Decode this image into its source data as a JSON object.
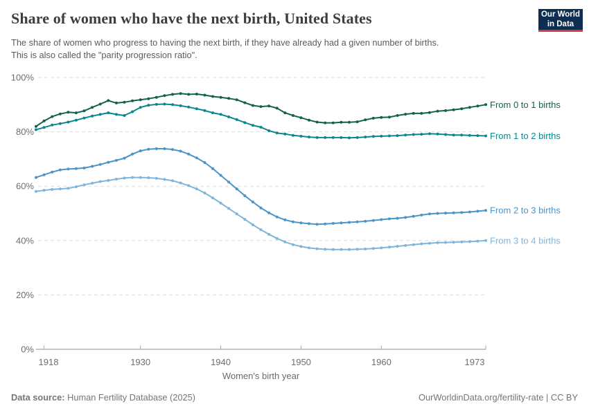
{
  "header": {
    "title": "Share of women who have the next birth, United States",
    "subtitle_line1": "The share of women who progress to having the next birth, if they have already had a given number of births.",
    "subtitle_line2": "This is also called the \"parity progression ratio\".",
    "logo": {
      "line1": "Our World",
      "line2": "in Data",
      "bg_color": "#0d2e51",
      "accent_color": "#d23a3e"
    }
  },
  "footer": {
    "source_label": "Data source:",
    "source_value": " Human Fertility Database (2025)",
    "link": "OurWorldinData.org/fertility-rate | CC BY"
  },
  "chart_data": {
    "type": "line",
    "title": "Share of women who have the next birth, United States",
    "xlabel": "Women's birth year",
    "ylabel": "",
    "x_range": [
      1917,
      1973
    ],
    "x_step": 1,
    "ylim": [
      0,
      100
    ],
    "yticks": [
      0,
      20,
      40,
      60,
      80,
      100
    ],
    "ytick_suffix": "%",
    "xticks": [
      1918,
      1930,
      1940,
      1950,
      1960,
      1973
    ],
    "grid": true,
    "legend_position": "right-end-labels",
    "series": [
      {
        "name": "From 0 to 1 births",
        "color": "#10634a",
        "values": [
          82.0,
          84.0,
          85.6,
          86.6,
          87.2,
          87.0,
          87.7,
          89.0,
          90.2,
          91.5,
          90.6,
          90.9,
          91.4,
          91.8,
          92.2,
          92.7,
          93.3,
          93.8,
          94.1,
          93.8,
          93.9,
          93.5,
          93.0,
          92.7,
          92.3,
          91.8,
          90.7,
          89.7,
          89.3,
          89.5,
          88.7,
          87.0,
          86.0,
          85.2,
          84.3,
          83.6,
          83.3,
          83.3,
          83.5,
          83.5,
          83.7,
          84.4,
          85.0,
          85.3,
          85.4,
          86.0,
          86.5,
          86.8,
          86.8,
          87.1,
          87.6,
          87.8,
          88.1,
          88.5,
          89.0,
          89.5,
          90.0
        ]
      },
      {
        "name": "From 1 to 2 births",
        "color": "#0b868c",
        "values": [
          80.8,
          81.6,
          82.5,
          83.0,
          83.6,
          84.3,
          85.1,
          85.8,
          86.4,
          87.0,
          86.4,
          86.0,
          87.4,
          89.0,
          89.8,
          90.1,
          90.2,
          90.0,
          89.6,
          89.1,
          88.5,
          87.8,
          87.0,
          86.4,
          85.5,
          84.5,
          83.4,
          82.4,
          81.7,
          80.4,
          79.6,
          79.2,
          78.7,
          78.4,
          78.1,
          77.9,
          77.9,
          77.9,
          77.9,
          77.8,
          77.9,
          78.1,
          78.3,
          78.4,
          78.5,
          78.6,
          78.8,
          79.0,
          79.1,
          79.3,
          79.2,
          79.0,
          78.8,
          78.8,
          78.7,
          78.6,
          78.5
        ]
      },
      {
        "name": "From 2 to 3 births",
        "color": "#4a94c8",
        "values": [
          63.2,
          64.2,
          65.2,
          66.0,
          66.3,
          66.5,
          66.7,
          67.3,
          68.0,
          68.8,
          69.5,
          70.3,
          71.8,
          73.0,
          73.6,
          73.8,
          73.8,
          73.5,
          72.9,
          71.8,
          70.4,
          68.7,
          66.5,
          64.0,
          61.5,
          59.0,
          56.5,
          54.2,
          52.0,
          50.2,
          48.7,
          47.6,
          46.9,
          46.5,
          46.2,
          46.0,
          46.1,
          46.3,
          46.5,
          46.7,
          46.9,
          47.1,
          47.4,
          47.7,
          48.0,
          48.2,
          48.5,
          48.9,
          49.4,
          49.8,
          50.0,
          50.1,
          50.2,
          50.3,
          50.5,
          50.8,
          51.1
        ]
      },
      {
        "name": "From 3 to 4 births",
        "color": "#7fb5dc",
        "values": [
          58.1,
          58.5,
          58.8,
          59.0,
          59.2,
          59.8,
          60.5,
          61.1,
          61.7,
          62.1,
          62.6,
          63.0,
          63.2,
          63.2,
          63.1,
          62.9,
          62.5,
          62.0,
          61.2,
          60.2,
          59.0,
          57.5,
          55.7,
          53.8,
          51.8,
          49.8,
          47.8,
          45.8,
          44.0,
          42.3,
          40.8,
          39.5,
          38.5,
          37.8,
          37.3,
          37.0,
          36.8,
          36.7,
          36.7,
          36.7,
          36.8,
          36.9,
          37.1,
          37.3,
          37.6,
          37.9,
          38.2,
          38.5,
          38.8,
          39.0,
          39.2,
          39.3,
          39.4,
          39.5,
          39.6,
          39.8,
          40.0
        ]
      }
    ]
  }
}
